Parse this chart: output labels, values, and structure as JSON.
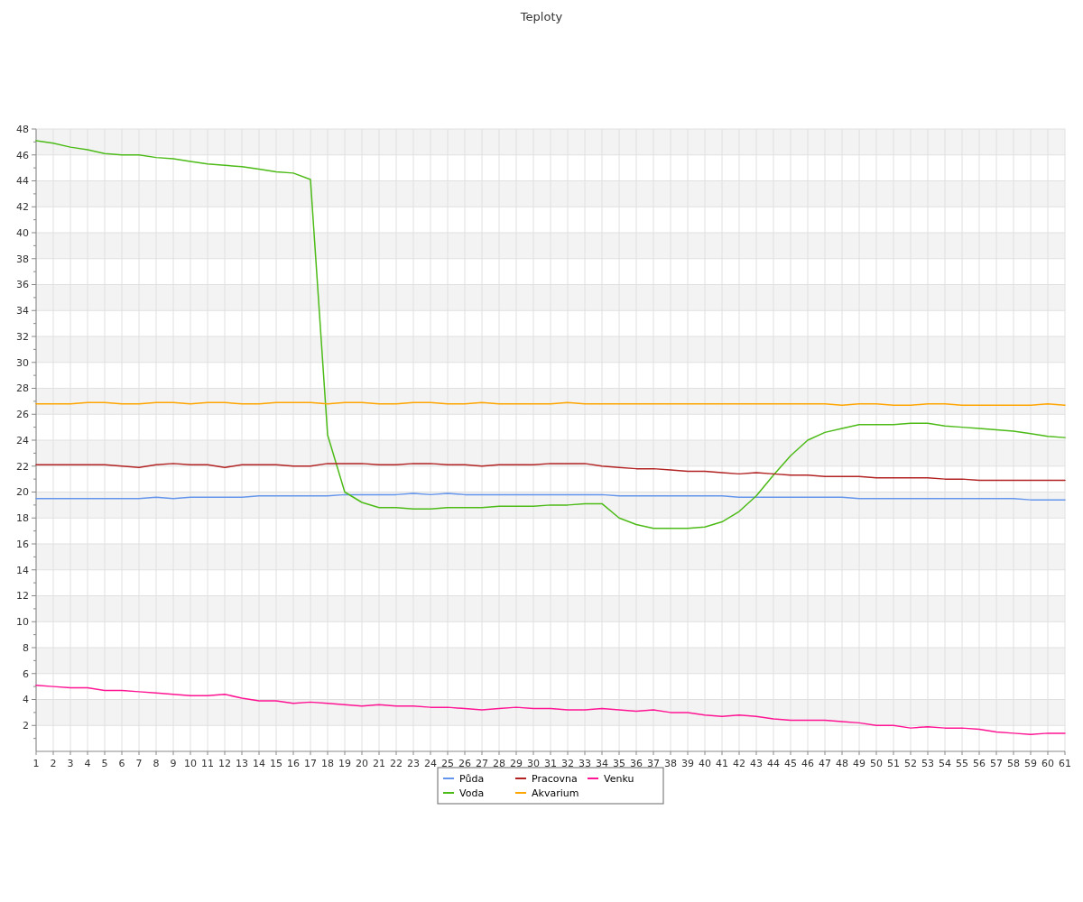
{
  "chart_data": {
    "type": "line",
    "title": "Teploty",
    "x": [
      1,
      2,
      3,
      4,
      5,
      6,
      7,
      8,
      9,
      10,
      11,
      12,
      13,
      14,
      15,
      16,
      17,
      18,
      19,
      20,
      21,
      22,
      23,
      24,
      25,
      26,
      27,
      28,
      29,
      30,
      31,
      32,
      33,
      34,
      35,
      36,
      37,
      38,
      39,
      40,
      41,
      42,
      43,
      44,
      45,
      46,
      47,
      48,
      49,
      50,
      51,
      52,
      53,
      54,
      55,
      56,
      57,
      58,
      59,
      60,
      61
    ],
    "xlim": [
      1,
      61
    ],
    "xticks": [
      1,
      2,
      3,
      4,
      5,
      6,
      7,
      8,
      9,
      10,
      11,
      12,
      13,
      14,
      15,
      16,
      17,
      18,
      19,
      20,
      21,
      22,
      23,
      24,
      25,
      26,
      27,
      28,
      29,
      30,
      31,
      32,
      33,
      34,
      35,
      36,
      37,
      38,
      39,
      40,
      41,
      42,
      43,
      44,
      45,
      46,
      47,
      48,
      49,
      50,
      51,
      52,
      53,
      54,
      55,
      56,
      57,
      58,
      59,
      60,
      61
    ],
    "ylim": [
      0,
      48
    ],
    "yticks": [
      2,
      4,
      6,
      8,
      10,
      12,
      14,
      16,
      18,
      20,
      22,
      24,
      26,
      28,
      30,
      32,
      34,
      36,
      38,
      40,
      42,
      44,
      46,
      48
    ],
    "grid": true,
    "legend": "bottom",
    "marker": "none",
    "line_style": "solid",
    "series": [
      {
        "name": "Půda",
        "color": "#6495ed",
        "values": [
          19.5,
          19.5,
          19.5,
          19.5,
          19.5,
          19.5,
          19.5,
          19.6,
          19.5,
          19.6,
          19.6,
          19.6,
          19.6,
          19.7,
          19.7,
          19.7,
          19.7,
          19.7,
          19.8,
          19.8,
          19.8,
          19.8,
          19.9,
          19.8,
          19.9,
          19.8,
          19.8,
          19.8,
          19.8,
          19.8,
          19.8,
          19.8,
          19.8,
          19.8,
          19.7,
          19.7,
          19.7,
          19.7,
          19.7,
          19.7,
          19.7,
          19.6,
          19.6,
          19.6,
          19.6,
          19.6,
          19.6,
          19.6,
          19.5,
          19.5,
          19.5,
          19.5,
          19.5,
          19.5,
          19.5,
          19.5,
          19.5,
          19.5,
          19.4,
          19.4,
          19.4
        ]
      },
      {
        "name": "Voda",
        "color": "#4cbb17",
        "values": [
          47.1,
          46.9,
          46.6,
          46.4,
          46.1,
          46.0,
          46.0,
          45.8,
          45.7,
          45.5,
          45.3,
          45.2,
          45.1,
          44.9,
          44.7,
          44.6,
          44.1,
          24.4,
          20.0,
          19.2,
          18.8,
          18.8,
          18.7,
          18.7,
          18.8,
          18.8,
          18.8,
          18.9,
          18.9,
          18.9,
          19.0,
          19.0,
          19.1,
          19.1,
          18.0,
          17.5,
          17.2,
          17.2,
          17.2,
          17.3,
          17.7,
          18.5,
          19.7,
          21.3,
          22.8,
          24.0,
          24.6,
          24.9,
          25.2,
          25.2,
          25.2,
          25.3,
          25.3,
          25.1,
          25.0,
          24.9,
          24.8,
          24.7,
          24.5,
          24.3,
          24.2
        ]
      },
      {
        "name": "Pracovna",
        "color": "#b22222",
        "values": [
          22.1,
          22.1,
          22.1,
          22.1,
          22.1,
          22.0,
          21.9,
          22.1,
          22.2,
          22.1,
          22.1,
          21.9,
          22.1,
          22.1,
          22.1,
          22.0,
          22.0,
          22.2,
          22.2,
          22.2,
          22.1,
          22.1,
          22.2,
          22.2,
          22.1,
          22.1,
          22.0,
          22.1,
          22.1,
          22.1,
          22.2,
          22.2,
          22.2,
          22.0,
          21.9,
          21.8,
          21.8,
          21.7,
          21.6,
          21.6,
          21.5,
          21.4,
          21.5,
          21.4,
          21.3,
          21.3,
          21.2,
          21.2,
          21.2,
          21.1,
          21.1,
          21.1,
          21.1,
          21.0,
          21.0,
          20.9,
          20.9,
          20.9,
          20.9,
          20.9,
          20.9
        ]
      },
      {
        "name": "Akvarium",
        "color": "#ffa500",
        "values": [
          26.8,
          26.8,
          26.8,
          26.9,
          26.9,
          26.8,
          26.8,
          26.9,
          26.9,
          26.8,
          26.9,
          26.9,
          26.8,
          26.8,
          26.9,
          26.9,
          26.9,
          26.8,
          26.9,
          26.9,
          26.8,
          26.8,
          26.9,
          26.9,
          26.8,
          26.8,
          26.9,
          26.8,
          26.8,
          26.8,
          26.8,
          26.9,
          26.8,
          26.8,
          26.8,
          26.8,
          26.8,
          26.8,
          26.8,
          26.8,
          26.8,
          26.8,
          26.8,
          26.8,
          26.8,
          26.8,
          26.8,
          26.7,
          26.8,
          26.8,
          26.7,
          26.7,
          26.8,
          26.8,
          26.7,
          26.7,
          26.7,
          26.7,
          26.7,
          26.8,
          26.7
        ]
      },
      {
        "name": "Venku",
        "color": "#ff1493",
        "values": [
          5.1,
          5.0,
          4.9,
          4.9,
          4.7,
          4.7,
          4.6,
          4.5,
          4.4,
          4.3,
          4.3,
          4.4,
          4.1,
          3.9,
          3.9,
          3.7,
          3.8,
          3.7,
          3.6,
          3.5,
          3.6,
          3.5,
          3.5,
          3.4,
          3.4,
          3.3,
          3.2,
          3.3,
          3.4,
          3.3,
          3.3,
          3.2,
          3.2,
          3.3,
          3.2,
          3.1,
          3.2,
          3.0,
          3.0,
          2.8,
          2.7,
          2.8,
          2.7,
          2.5,
          2.4,
          2.4,
          2.4,
          2.3,
          2.2,
          2.0,
          2.0,
          1.8,
          1.9,
          1.8,
          1.8,
          1.7,
          1.5,
          1.4,
          1.3,
          1.4,
          1.4
        ]
      }
    ]
  }
}
